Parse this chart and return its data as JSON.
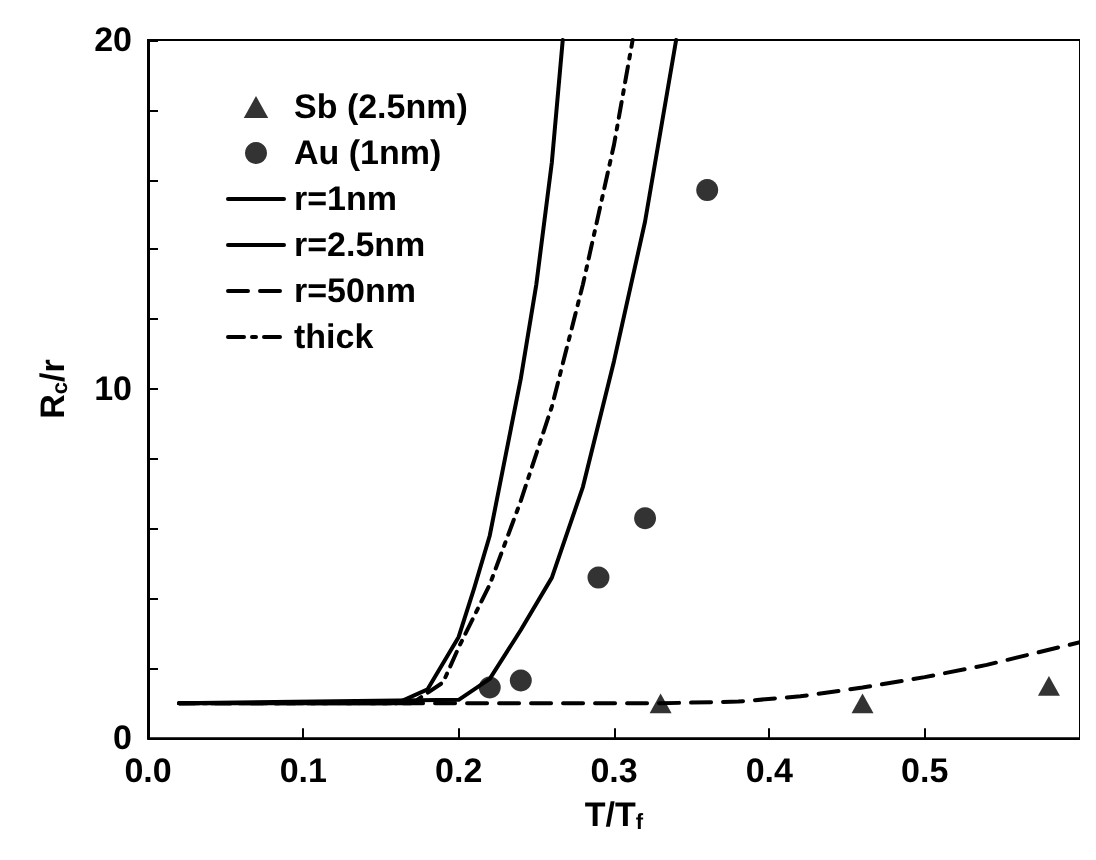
{
  "chart_data": {
    "type": "line",
    "xlabel": "T/T$_{f}$",
    "ylabel": "R$_{c}$/r",
    "xlim": [
      0,
      0.6
    ],
    "ylim": [
      0,
      20
    ],
    "xticks": [
      {
        "value": 0,
        "label": "0.0"
      },
      {
        "value": 0.1,
        "label": "0.1"
      },
      {
        "value": 0.2,
        "label": "0.2"
      },
      {
        "value": 0.3,
        "label": "0.3"
      },
      {
        "value": 0.4,
        "label": "0.4"
      },
      {
        "value": 0.5,
        "label": "0.5"
      }
    ],
    "yticks": [
      0,
      {
        "value": 2,
        "label": null
      },
      {
        "value": 4,
        "label": null
      },
      {
        "value": 6,
        "label": null
      },
      {
        "value": 8,
        "label": null
      },
      10,
      {
        "value": 12,
        "label": null
      },
      {
        "value": 14,
        "label": null
      },
      {
        "value": 16,
        "label": null
      },
      {
        "value": 18,
        "label": null
      },
      20
    ],
    "grid": false,
    "legend": "top left",
    "series": [
      {
        "name": "Sb (2.5nm)",
        "type": "scatter",
        "marker": "triangle",
        "color": "#000000",
        "x": [
          0.33,
          0.46,
          0.58
        ],
        "values": [
          1.0,
          1.0,
          1.5
        ]
      },
      {
        "name": "Au (1nm)",
        "type": "scatter",
        "marker": "circle",
        "color": "#000000",
        "x": [
          0.22,
          0.24,
          0.29,
          0.32,
          0.36
        ],
        "values": [
          1.45,
          1.65,
          4.6,
          6.3,
          15.7
        ]
      },
      {
        "name": "r=1nm",
        "type": "line",
        "line_style": "solid",
        "color": "#000000",
        "x": [
          0.02,
          0.16,
          0.18,
          0.2,
          0.21,
          0.22,
          0.24,
          0.25,
          0.26,
          0.267
        ],
        "values": [
          1,
          1,
          1.4,
          2.9,
          4.3,
          5.8,
          10.3,
          13,
          16.5,
          20
        ]
      },
      {
        "name": "r=2.5nm",
        "type": "line",
        "line_style": "solid",
        "color": "#000000",
        "x": [
          0.02,
          0.2,
          0.22,
          0.24,
          0.26,
          0.28,
          0.3,
          0.32,
          0.34
        ],
        "values": [
          1,
          1.1,
          1.7,
          3.1,
          4.6,
          7.2,
          10.8,
          14.8,
          20
        ]
      },
      {
        "name": "r=50nm",
        "type": "line",
        "line_style": "dashed",
        "color": "#000000",
        "x": [
          0.02,
          0.33,
          0.38,
          0.42,
          0.46,
          0.5,
          0.54,
          0.6
        ],
        "values": [
          1,
          1,
          1.05,
          1.2,
          1.45,
          1.75,
          2.1,
          2.75
        ]
      },
      {
        "name": "thick",
        "type": "line",
        "line_style": "dashdot",
        "color": "#000000",
        "x": [
          0.02,
          0.17,
          0.19,
          0.2,
          0.22,
          0.24,
          0.26,
          0.28,
          0.3,
          0.312
        ],
        "values": [
          1,
          1,
          1.6,
          2.6,
          4.4,
          6.8,
          9.5,
          13,
          17,
          20
        ]
      }
    ]
  }
}
